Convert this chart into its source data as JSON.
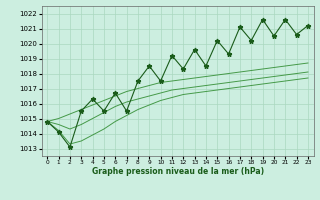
{
  "xlabel": "Graphe pression niveau de la mer (hPa)",
  "ylim": [
    1012.5,
    1022.5
  ],
  "xlim": [
    -0.5,
    23.5
  ],
  "yticks": [
    1013,
    1014,
    1015,
    1016,
    1017,
    1018,
    1019,
    1020,
    1021,
    1022
  ],
  "xticks": [
    0,
    1,
    2,
    3,
    4,
    5,
    6,
    7,
    8,
    9,
    10,
    11,
    12,
    13,
    14,
    15,
    16,
    17,
    18,
    19,
    20,
    21,
    22,
    23
  ],
  "bg_color": "#cceee0",
  "line_color_main": "#1a5c1a",
  "line_color_smooth": "#2e8b2e",
  "grid_color": "#aad8c0",
  "zigzag_y": [
    1014.8,
    1014.1,
    1013.1,
    1015.5,
    1016.3,
    1015.5,
    1016.7,
    1015.5,
    1017.5,
    1018.5,
    1017.5,
    1019.2,
    1018.3,
    1019.6,
    1018.5,
    1020.2,
    1019.3,
    1021.1,
    1020.2,
    1021.6,
    1020.5,
    1021.6,
    1020.6,
    1021.2
  ],
  "smooth_upper_y": [
    1014.8,
    1015.0,
    1015.3,
    1015.6,
    1015.9,
    1016.2,
    1016.5,
    1016.8,
    1017.0,
    1017.2,
    1017.4,
    1017.5,
    1017.6,
    1017.7,
    1017.8,
    1017.9,
    1018.0,
    1018.1,
    1018.2,
    1018.3,
    1018.4,
    1018.5,
    1018.6,
    1018.7
  ],
  "smooth_mid_y": [
    1014.8,
    1014.6,
    1014.3,
    1014.6,
    1015.0,
    1015.4,
    1015.8,
    1016.1,
    1016.3,
    1016.5,
    1016.7,
    1016.9,
    1017.0,
    1017.1,
    1017.2,
    1017.3,
    1017.4,
    1017.5,
    1017.6,
    1017.7,
    1017.8,
    1017.9,
    1018.0,
    1018.1
  ],
  "smooth_lower_y": [
    1014.8,
    1014.2,
    1013.3,
    1013.5,
    1013.9,
    1014.3,
    1014.8,
    1015.2,
    1015.6,
    1015.9,
    1016.2,
    1016.4,
    1016.6,
    1016.7,
    1016.8,
    1016.9,
    1017.0,
    1017.1,
    1017.2,
    1017.3,
    1017.4,
    1017.5,
    1017.6,
    1017.7
  ]
}
